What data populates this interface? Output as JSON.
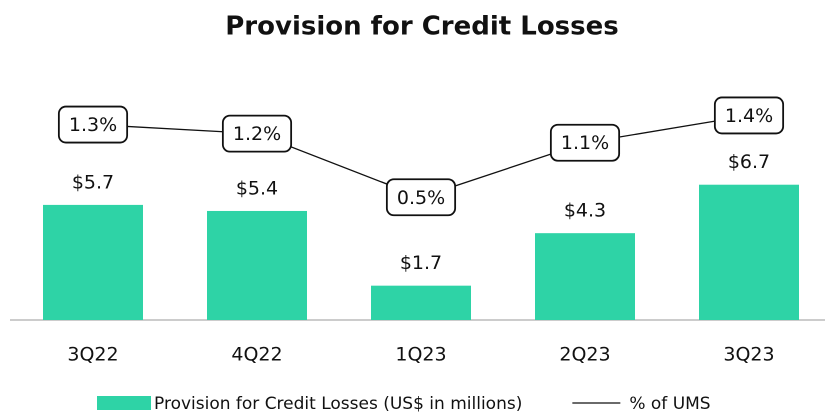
{
  "chart_data": {
    "type": "bar",
    "title": "Provision for Credit Losses",
    "categories": [
      "3Q22",
      "4Q22",
      "1Q23",
      "2Q23",
      "3Q23"
    ],
    "series": [
      {
        "name": "Provision for Credit Losses (US$ in millions)",
        "color": "#2ed3a6",
        "values": [
          5.7,
          5.4,
          1.7,
          4.3,
          6.7
        ],
        "value_labels": [
          "$5.7",
          "$5.4",
          "$1.7",
          "$4.3",
          "$6.7"
        ]
      },
      {
        "name": "% of UMS",
        "type": "line",
        "axis": "y2",
        "color": "#111111",
        "values": [
          1.3,
          1.2,
          0.5,
          1.1,
          1.4
        ],
        "value_labels": [
          "1.3%",
          "1.2%",
          "0.5%",
          "1.1%",
          "1.4%"
        ]
      }
    ],
    "ylim": [
      0,
      10.4
    ],
    "y2lim": [
      -0.85,
      1.46
    ]
  }
}
